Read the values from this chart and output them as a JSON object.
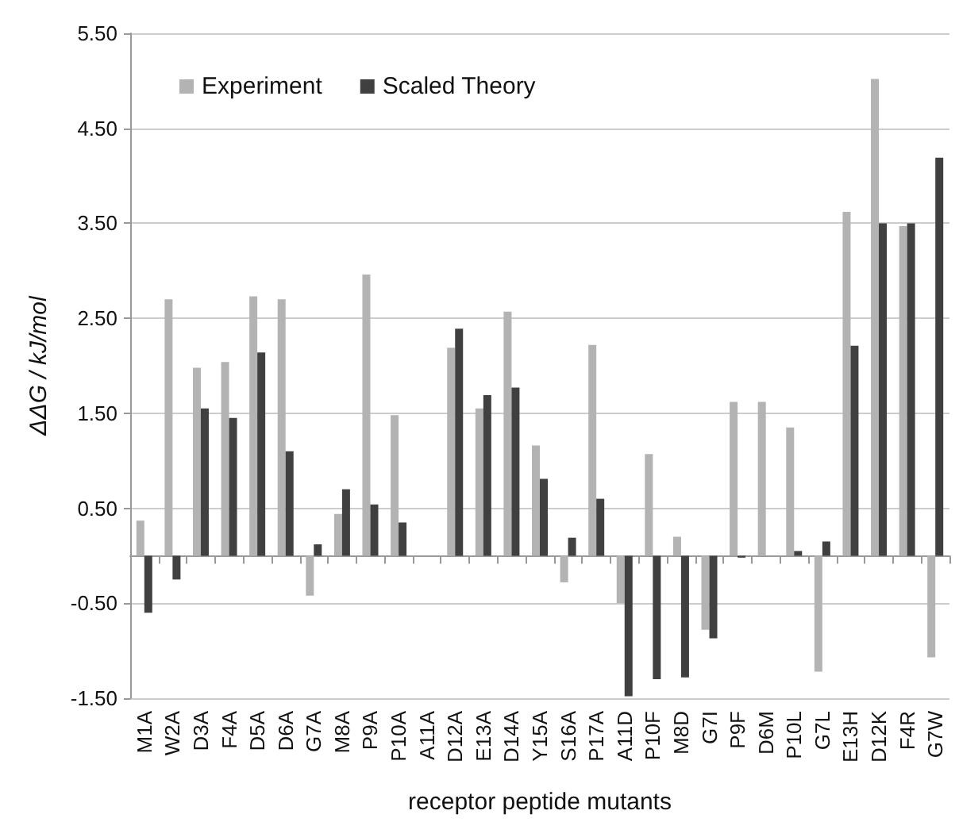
{
  "chart_data": {
    "type": "bar",
    "xlabel": "receptor peptide mutants",
    "ylabel": "ΔΔG / kJ/mol",
    "categories": [
      "M1A",
      "W2A",
      "D3A",
      "F4A",
      "D5A",
      "D6A",
      "G7A",
      "M8A",
      "P9A",
      "P10A",
      "A11A",
      "D12A",
      "E13A",
      "D14A",
      "Y15A",
      "S16A",
      "P17A",
      "A11D",
      "P10F",
      "M8D",
      "G7I",
      "P9F",
      "D6M",
      "P10L",
      "G7L",
      "E13H",
      "D12K",
      "F4R",
      "G7W"
    ],
    "series": [
      {
        "name": "Experiment",
        "color": "#b3b3b3",
        "values": [
          0.37,
          2.7,
          1.98,
          2.04,
          2.73,
          2.7,
          -0.42,
          0.44,
          2.96,
          1.48,
          0,
          2.19,
          1.55,
          2.57,
          1.16,
          -0.28,
          2.22,
          -0.5,
          1.07,
          0.2,
          -0.78,
          1.62,
          1.62,
          1.35,
          -1.22,
          3.62,
          5.02,
          3.47,
          -1.07
        ]
      },
      {
        "name": "Scaled Theory",
        "color": "#404040",
        "values": [
          -0.6,
          -0.25,
          1.55,
          1.45,
          2.14,
          1.1,
          0.12,
          0.7,
          0.54,
          0.35,
          0,
          2.39,
          1.69,
          1.77,
          0.81,
          0.19,
          0.6,
          -1.48,
          -1.3,
          -1.28,
          -0.87,
          -0.02,
          0,
          0.05,
          0.15,
          2.21,
          3.5,
          3.5,
          4.19
        ]
      }
    ],
    "ylim": [
      -1.5,
      5.5
    ],
    "yticks": [
      {
        "value": -1.5,
        "label": "-1.50"
      },
      {
        "value": -0.5,
        "label": "-0.50"
      },
      {
        "value": 0.5,
        "label": "0.50"
      },
      {
        "value": 1.5,
        "label": "1.50"
      },
      {
        "value": 2.5,
        "label": "2.50"
      },
      {
        "value": 3.5,
        "label": "3.50"
      },
      {
        "value": 4.5,
        "label": "4.50"
      },
      {
        "value": 5.5,
        "label": "5.50"
      }
    ],
    "grid": "y",
    "legend": "top left"
  }
}
